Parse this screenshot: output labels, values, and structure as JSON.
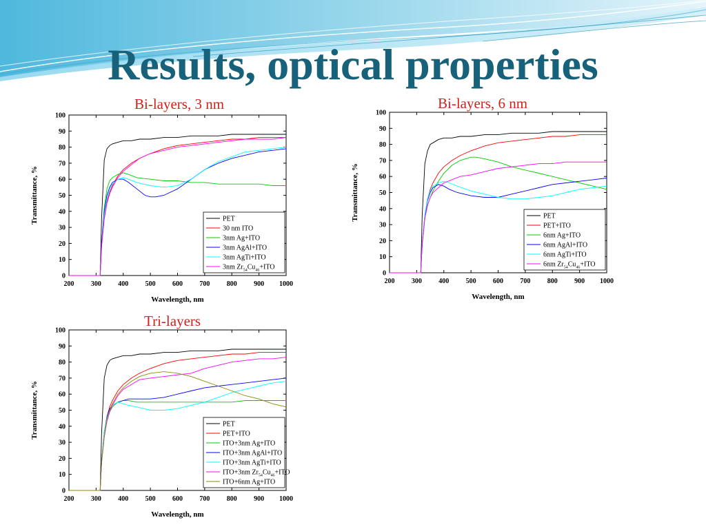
{
  "slide": {
    "title": "Results, optical properties",
    "panel_titles": [
      "Bi-layers, 3 nm",
      "Bi-layers, 6 nm",
      "Tri-layers"
    ]
  },
  "chart_data": [
    {
      "type": "line",
      "title": "Bi-layers, 3 nm",
      "xlabel": "Wavelength, nm",
      "ylabel": "Transmittance, %",
      "xlim": [
        200,
        1000
      ],
      "ylim": [
        0,
        100
      ],
      "xticks": [
        200,
        300,
        400,
        500,
        600,
        700,
        800,
        900,
        1000
      ],
      "yticks": [
        0,
        10,
        20,
        30,
        40,
        50,
        60,
        70,
        80,
        90,
        100
      ],
      "grid": false,
      "legend": "bottom-right",
      "series": [
        {
          "name": "PET",
          "color": "#000000",
          "x": [
            200,
            300,
            310,
            315,
            320,
            330,
            340,
            350,
            360,
            380,
            400,
            430,
            460,
            500,
            550,
            600,
            650,
            700,
            750,
            800,
            850,
            900,
            950,
            1000
          ],
          "y": [
            0,
            0,
            0,
            0,
            35,
            72,
            79,
            81,
            82,
            83,
            84,
            84,
            85,
            85,
            86,
            86,
            87,
            87,
            87,
            88,
            88,
            88,
            88,
            88
          ]
        },
        {
          "name": "30 nm ITO",
          "color": "#ff0000",
          "x": [
            200,
            300,
            310,
            315,
            320,
            330,
            340,
            350,
            360,
            380,
            400,
            430,
            460,
            500,
            550,
            600,
            650,
            700,
            750,
            800,
            850,
            900,
            950,
            1000
          ],
          "y": [
            0,
            0,
            0,
            0,
            18,
            36,
            46,
            52,
            56,
            62,
            66,
            70,
            73,
            76,
            79,
            81,
            82,
            83,
            84,
            85,
            85,
            86,
            86,
            86
          ]
        },
        {
          "name": "3nm Ag+ITO",
          "color": "#00cc00",
          "x": [
            200,
            300,
            310,
            315,
            320,
            330,
            340,
            350,
            360,
            380,
            400,
            420,
            450,
            500,
            550,
            600,
            650,
            700,
            750,
            800,
            850,
            900,
            950,
            1000
          ],
          "y": [
            0,
            0,
            0,
            0,
            20,
            42,
            54,
            59,
            61,
            63,
            64,
            63,
            61,
            60,
            59,
            59,
            58,
            58,
            57,
            57,
            57,
            57,
            56,
            56
          ]
        },
        {
          "name": "3nm AgAl+ITO",
          "color": "#0000ff",
          "x": [
            200,
            300,
            310,
            315,
            320,
            330,
            340,
            350,
            360,
            380,
            400,
            420,
            450,
            480,
            500,
            520,
            550,
            600,
            650,
            700,
            750,
            800,
            850,
            900,
            950,
            1000
          ],
          "y": [
            0,
            0,
            0,
            0,
            20,
            40,
            50,
            55,
            58,
            60,
            60,
            58,
            54,
            50,
            49,
            49,
            50,
            54,
            60,
            66,
            70,
            73,
            75,
            77,
            78,
            79
          ]
        },
        {
          "name": "3nm AgTi+ITO",
          "color": "#00ffff",
          "x": [
            200,
            300,
            310,
            315,
            320,
            330,
            340,
            350,
            360,
            380,
            400,
            420,
            450,
            500,
            550,
            600,
            650,
            700,
            750,
            800,
            850,
            900,
            950,
            1000
          ],
          "y": [
            0,
            0,
            0,
            0,
            18,
            38,
            48,
            54,
            57,
            60,
            61,
            60,
            58,
            56,
            55,
            56,
            60,
            66,
            71,
            74,
            77,
            78,
            79,
            80
          ]
        },
        {
          "name": "3nm Zr54Cu46+ITO",
          "color": "#ff00ff",
          "x": [
            200,
            300,
            310,
            315,
            320,
            330,
            340,
            350,
            360,
            380,
            400,
            430,
            460,
            500,
            550,
            600,
            650,
            700,
            750,
            800,
            850,
            900,
            950,
            1000
          ],
          "y": [
            0,
            0,
            0,
            0,
            18,
            35,
            45,
            51,
            55,
            61,
            65,
            69,
            73,
            76,
            78,
            80,
            81,
            82,
            83,
            84,
            85,
            85,
            85,
            86
          ]
        }
      ]
    },
    {
      "type": "line",
      "title": "Bi-layers, 6 nm",
      "xlabel": "Wavelength, nm",
      "ylabel": "Transmittance, %",
      "xlim": [
        200,
        1000
      ],
      "ylim": [
        0,
        100
      ],
      "xticks": [
        200,
        300,
        400,
        500,
        600,
        700,
        800,
        900,
        1000
      ],
      "yticks": [
        0,
        10,
        20,
        30,
        40,
        50,
        60,
        70,
        80,
        90,
        100
      ],
      "grid": false,
      "legend": "bottom-right",
      "series": [
        {
          "name": "PET",
          "color": "#000000",
          "x": [
            200,
            300,
            310,
            315,
            320,
            330,
            340,
            350,
            360,
            380,
            400,
            430,
            460,
            500,
            550,
            600,
            650,
            700,
            750,
            800,
            850,
            900,
            950,
            1000
          ],
          "y": [
            0,
            0,
            0,
            0,
            35,
            68,
            76,
            80,
            81,
            83,
            84,
            84,
            85,
            85,
            86,
            86,
            87,
            87,
            87,
            88,
            88,
            88,
            88,
            88
          ]
        },
        {
          "name": "PET+ITO",
          "color": "#ff0000",
          "x": [
            200,
            300,
            310,
            315,
            320,
            330,
            340,
            350,
            360,
            380,
            400,
            430,
            460,
            500,
            550,
            600,
            650,
            700,
            750,
            800,
            850,
            900,
            950,
            1000
          ],
          "y": [
            0,
            0,
            0,
            0,
            18,
            36,
            46,
            52,
            56,
            62,
            66,
            70,
            73,
            76,
            79,
            81,
            82,
            83,
            84,
            85,
            85,
            86,
            86,
            86
          ]
        },
        {
          "name": "6nm Ag+ITO",
          "color": "#00cc00",
          "x": [
            200,
            300,
            310,
            315,
            320,
            330,
            340,
            350,
            360,
            380,
            400,
            430,
            460,
            500,
            520,
            550,
            600,
            650,
            700,
            750,
            800,
            850,
            900,
            950,
            1000
          ],
          "y": [
            0,
            0,
            0,
            0,
            17,
            34,
            42,
            47,
            51,
            57,
            62,
            67,
            70,
            72,
            72,
            71,
            69,
            66,
            64,
            62,
            60,
            58,
            56,
            54,
            52
          ]
        },
        {
          "name": "6nm AgAl+ITO",
          "color": "#0000ff",
          "x": [
            200,
            300,
            310,
            315,
            320,
            330,
            340,
            350,
            360,
            380,
            400,
            420,
            450,
            500,
            550,
            600,
            650,
            700,
            750,
            800,
            850,
            900,
            950,
            1000
          ],
          "y": [
            0,
            0,
            0,
            0,
            18,
            35,
            45,
            50,
            53,
            55,
            54,
            52,
            50,
            48,
            47,
            47,
            49,
            51,
            53,
            55,
            56,
            57,
            58,
            59
          ]
        },
        {
          "name": "6nm AgTi+ITO",
          "color": "#00ffff",
          "x": [
            200,
            300,
            310,
            315,
            320,
            330,
            340,
            350,
            360,
            380,
            400,
            420,
            450,
            500,
            550,
            600,
            650,
            700,
            750,
            800,
            850,
            900,
            950,
            1000
          ],
          "y": [
            0,
            0,
            0,
            0,
            18,
            36,
            46,
            51,
            54,
            56,
            57,
            56,
            54,
            51,
            49,
            47,
            46,
            46,
            47,
            48,
            50,
            52,
            53,
            54
          ]
        },
        {
          "name": "6nm Zr54Cu46+ITO",
          "color": "#ff00ff",
          "x": [
            200,
            300,
            310,
            315,
            320,
            330,
            340,
            350,
            360,
            380,
            400,
            430,
            460,
            500,
            550,
            600,
            650,
            700,
            750,
            800,
            850,
            900,
            950,
            1000
          ],
          "y": [
            0,
            0,
            0,
            0,
            17,
            34,
            42,
            47,
            50,
            53,
            56,
            58,
            60,
            61,
            63,
            65,
            66,
            67,
            68,
            68,
            69,
            69,
            69,
            69
          ]
        }
      ]
    },
    {
      "type": "line",
      "title": "Tri-layers",
      "xlabel": "Wavelength, nm",
      "ylabel": "Transmittance, %",
      "xlim": [
        200,
        1000
      ],
      "ylim": [
        0,
        100
      ],
      "xticks": [
        200,
        300,
        400,
        500,
        600,
        700,
        800,
        900,
        1000
      ],
      "yticks": [
        0,
        10,
        20,
        30,
        40,
        50,
        60,
        70,
        80,
        90,
        100
      ],
      "grid": false,
      "legend": "bottom-right",
      "series": [
        {
          "name": "PET",
          "color": "#000000",
          "x": [
            200,
            300,
            310,
            315,
            320,
            330,
            340,
            350,
            360,
            380,
            400,
            430,
            460,
            500,
            550,
            600,
            650,
            700,
            750,
            800,
            850,
            900,
            950,
            1000
          ],
          "y": [
            0,
            0,
            0,
            0,
            35,
            70,
            78,
            81,
            82,
            83,
            84,
            84,
            85,
            85,
            86,
            86,
            87,
            87,
            87,
            88,
            88,
            88,
            88,
            88
          ]
        },
        {
          "name": "PET+ITO",
          "color": "#ff0000",
          "x": [
            200,
            300,
            310,
            315,
            320,
            330,
            340,
            350,
            360,
            380,
            400,
            430,
            460,
            500,
            550,
            600,
            650,
            700,
            750,
            800,
            850,
            900,
            950,
            1000
          ],
          "y": [
            0,
            0,
            0,
            0,
            18,
            36,
            46,
            52,
            56,
            62,
            66,
            70,
            73,
            76,
            79,
            81,
            82,
            83,
            84,
            85,
            85,
            86,
            86,
            86
          ]
        },
        {
          "name": "ITO+3nm Ag+ITO",
          "color": "#00cc00",
          "x": [
            200,
            300,
            310,
            315,
            320,
            330,
            340,
            350,
            360,
            380,
            400,
            420,
            450,
            500,
            550,
            600,
            650,
            700,
            750,
            800,
            850,
            900,
            950,
            1000
          ],
          "y": [
            0,
            0,
            0,
            0,
            17,
            34,
            44,
            49,
            52,
            55,
            56,
            56,
            55,
            55,
            55,
            55,
            55,
            55,
            55,
            55,
            56,
            56,
            56,
            56
          ]
        },
        {
          "name": "ITO+3nm AgAl+ITO",
          "color": "#0000ff",
          "x": [
            200,
            300,
            310,
            315,
            320,
            330,
            340,
            350,
            360,
            380,
            400,
            420,
            450,
            500,
            550,
            600,
            650,
            700,
            750,
            800,
            850,
            900,
            950,
            1000
          ],
          "y": [
            0,
            0,
            0,
            0,
            18,
            36,
            46,
            51,
            53,
            55,
            56,
            57,
            57,
            57,
            58,
            60,
            62,
            64,
            65,
            66,
            67,
            68,
            69,
            70
          ]
        },
        {
          "name": "ITO+3nm AgTi+ITO",
          "color": "#00ffff",
          "x": [
            200,
            300,
            310,
            315,
            320,
            330,
            340,
            350,
            360,
            380,
            400,
            420,
            450,
            500,
            550,
            600,
            650,
            700,
            750,
            800,
            850,
            900,
            950,
            1000
          ],
          "y": [
            0,
            0,
            0,
            0,
            18,
            36,
            45,
            50,
            53,
            55,
            54,
            53,
            52,
            50,
            50,
            51,
            53,
            55,
            58,
            61,
            63,
            65,
            67,
            68
          ]
        },
        {
          "name": "ITO+3nm Zr54Cu46+ITO",
          "color": "#ff00ff",
          "x": [
            200,
            300,
            310,
            315,
            320,
            330,
            340,
            350,
            360,
            380,
            400,
            430,
            460,
            500,
            550,
            600,
            650,
            700,
            750,
            800,
            850,
            900,
            950,
            1000
          ],
          "y": [
            0,
            0,
            0,
            0,
            17,
            33,
            43,
            49,
            53,
            59,
            63,
            66,
            69,
            70,
            71,
            72,
            73,
            76,
            78,
            80,
            81,
            82,
            82,
            83
          ]
        },
        {
          "name": "ITO+6nm Ag+ITO",
          "color": "#8a8a00",
          "x": [
            200,
            300,
            310,
            315,
            320,
            330,
            340,
            350,
            360,
            380,
            400,
            430,
            460,
            500,
            550,
            600,
            650,
            700,
            750,
            800,
            850,
            900,
            950,
            1000
          ],
          "y": [
            0,
            0,
            0,
            0,
            17,
            34,
            44,
            50,
            54,
            60,
            64,
            68,
            71,
            73,
            74,
            73,
            71,
            68,
            65,
            62,
            59,
            57,
            54,
            52
          ]
        }
      ]
    }
  ]
}
